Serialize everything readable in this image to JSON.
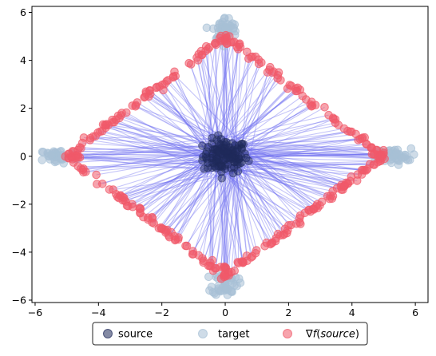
{
  "chart_data": {
    "type": "scatter",
    "xlim": [
      -6.1,
      6.4
    ],
    "ylim": [
      -6.1,
      6.25
    ],
    "x_ticks": [
      -6,
      -4,
      -2,
      0,
      2,
      4,
      6
    ],
    "y_ticks": [
      -6,
      -4,
      -2,
      0,
      2,
      4,
      6
    ],
    "grid": false,
    "legend": {
      "placement": "bottom-center",
      "columns": 3
    },
    "series": [
      {
        "name": "source",
        "label_parts": [
          "source"
        ],
        "color": "#1f2a5a",
        "alpha": 0.55,
        "distribution": "cluster at origin",
        "center": [
          0,
          0
        ],
        "spread": 0.35,
        "count": 120
      },
      {
        "name": "target",
        "label_parts": [
          "target"
        ],
        "color": "#a7c0d6",
        "alpha": 0.55,
        "distribution": "four clusters",
        "centers": [
          [
            5.3,
            0
          ],
          [
            -5.3,
            0
          ],
          [
            0,
            5.3
          ],
          [
            0,
            -5.3
          ]
        ],
        "spread": 0.22,
        "count_per_cluster": 45
      },
      {
        "name": "∇f(source)",
        "label_parts": [
          "∇",
          "f",
          "(",
          "source",
          ")"
        ],
        "color": "#f05a6a",
        "alpha": 0.55,
        "distribution": "diamond |x|+|y|=5",
        "vertices": [
          [
            5,
            0
          ],
          [
            0,
            5
          ],
          [
            -5,
            0
          ],
          [
            0,
            -5
          ]
        ],
        "count": 300
      }
    ],
    "arrows": {
      "from": "source",
      "to": "∇f(source)",
      "color": "#6d6df0",
      "alpha": 0.4
    }
  }
}
